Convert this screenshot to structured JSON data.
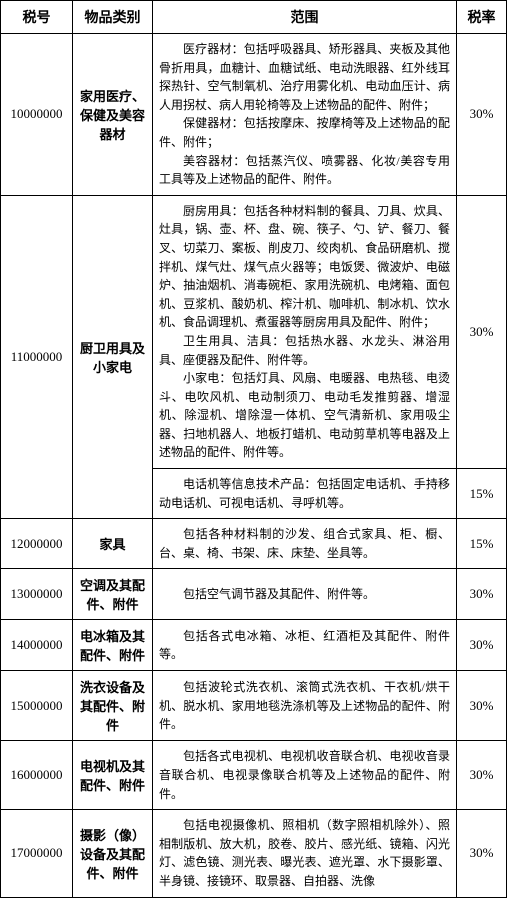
{
  "headers": {
    "taxno": "税号",
    "category": "物品类别",
    "scope": "范围",
    "rate": "税率"
  },
  "rows": [
    {
      "taxno": "10000000",
      "category": "家用医疗、保健及美容器材",
      "scope_paragraphs": [
        "医疗器材：包括呼吸器具、矫形器具、夹板及其他骨折用具，血糖计、血糖试纸、电动洗眼器、红外线耳探热针、空气制氧机、治疗用雾化机、电动血压计、病人用拐杖、病人用轮椅等及上述物品的配件、附件；",
        "保健器材：包括按摩床、按摩椅等及上述物品的配件、附件；",
        "美容器材：包括蒸汽仪、喷雾器、化妆/美容专用工具等及上述物品的配件、附件。"
      ],
      "rate": "30%"
    },
    {
      "taxno": "11000000",
      "category": "厨卫用具及小家电",
      "scope_paragraphs": [
        "厨房用具：包括各种材料制的餐具、刀具、炊具、灶具，锅、壶、杯、盘、碗、筷子、勺、铲、餐刀、餐叉、切菜刀、案板、削皮刀、绞肉机、食品研磨机、搅拌机、煤气灶、煤气点火器等；电饭煲、微波炉、电磁炉、抽油烟机、消毒碗柜、家用洗碗机、电烤箱、面包机、豆浆机、酸奶机、榨汁机、咖啡机、制冰机、饮水机、食品调理机、煮蛋器等厨房用具及配件、附件；",
        "卫生用具、洁具：包括热水器、水龙头、淋浴用具、座便器及配件、附件等。",
        "小家电：包括灯具、风扇、电暖器、电热毯、电烫斗、电吹风机、电动制须刀、电动毛发推剪器、增湿机、除湿机、增除湿一体机、空气清新机、家用吸尘器、扫地机器人、地板打蜡机、电动剪草机等电器及上述物品的配件、附件等。"
      ],
      "rate": "30%"
    },
    {
      "taxno_same": true,
      "scope_paragraphs": [
        "电话机等信息技术产品：包括固定电话机、手持移动电话机、可视电话机、寻呼机等。"
      ],
      "rate": "15%"
    },
    {
      "taxno": "12000000",
      "category": "家具",
      "scope_paragraphs": [
        "包括各种材料制的沙发、组合式家具、柜、橱、台、桌、椅、书架、床、床垫、坐具等。"
      ],
      "rate": "15%"
    },
    {
      "taxno": "13000000",
      "category": "空调及其配件、附件",
      "scope_paragraphs": [
        "包括空气调节器及其配件、附件等。"
      ],
      "rate": "30%"
    },
    {
      "taxno": "14000000",
      "category": "电冰箱及其配件、附件",
      "scope_paragraphs": [
        "包括各式电冰箱、冰柜、红酒柜及其配件、附件等。"
      ],
      "rate": "30%"
    },
    {
      "taxno": "15000000",
      "category": "洗衣设备及其配件、附件",
      "scope_paragraphs": [
        "包括波轮式洗衣机、滚筒式洗衣机、干衣机/烘干机、脱水机、家用地毯洗涤机等及上述物品的配件、附件。"
      ],
      "rate": "30%"
    },
    {
      "taxno": "16000000",
      "category": "电视机及其配件、附件",
      "scope_paragraphs": [
        "包括各式电视机、电视机收音联合机、电视收音录音联合机、电视录像联合机等及上述物品的配件、附件。"
      ],
      "rate": "30%"
    },
    {
      "taxno": "17000000",
      "category": "摄影（像）设备及其配件、附件",
      "scope_paragraphs": [
        "包括电视摄像机、照相机（数字照相机除外）、照相制版机、放大机，胶卷、胶片、感光纸、镜箱、闪光灯、滤色镜、测光表、曝光表、遮光罩、水下摄影罩、半身镜、接镜环、取景器、自拍器、洗像"
      ],
      "rate": "30%"
    }
  ]
}
